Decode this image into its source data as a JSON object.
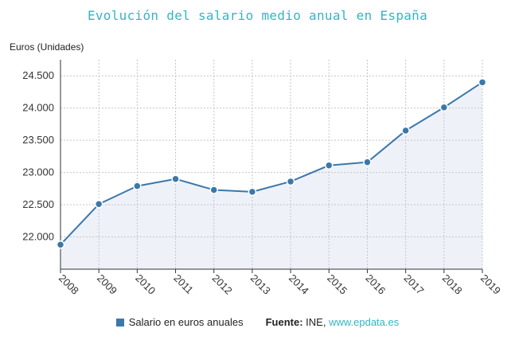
{
  "chart_data": {
    "type": "line",
    "title": "Evolución del salario medio anual en España",
    "ylabel": "Euros (Unidades)",
    "xlabel": "",
    "categories": [
      "2008",
      "2009",
      "2010",
      "2011",
      "2012",
      "2013",
      "2014",
      "2015",
      "2016",
      "2017",
      "2018",
      "2019"
    ],
    "series": [
      {
        "name": "Salario en euros anuales",
        "values": [
          21880,
          22510,
          22790,
          22900,
          22730,
          22700,
          22860,
          23110,
          23160,
          23650,
          24010,
          24400
        ],
        "color": "#3b78aa"
      }
    ],
    "ylim": [
      21500,
      24750
    ],
    "yticks": [
      22000,
      22500,
      23000,
      23500,
      24000,
      24500
    ],
    "ytick_labels": [
      "22.000",
      "22.500",
      "23.000",
      "23.500",
      "24.000",
      "24.500"
    ],
    "grid": true,
    "area_fill": "#eef2f8"
  },
  "legend": {
    "series_label": "Salario en euros anuales",
    "source_label": "Fuente:",
    "source_value": "INE,",
    "source_link": "www.epdata.es"
  }
}
